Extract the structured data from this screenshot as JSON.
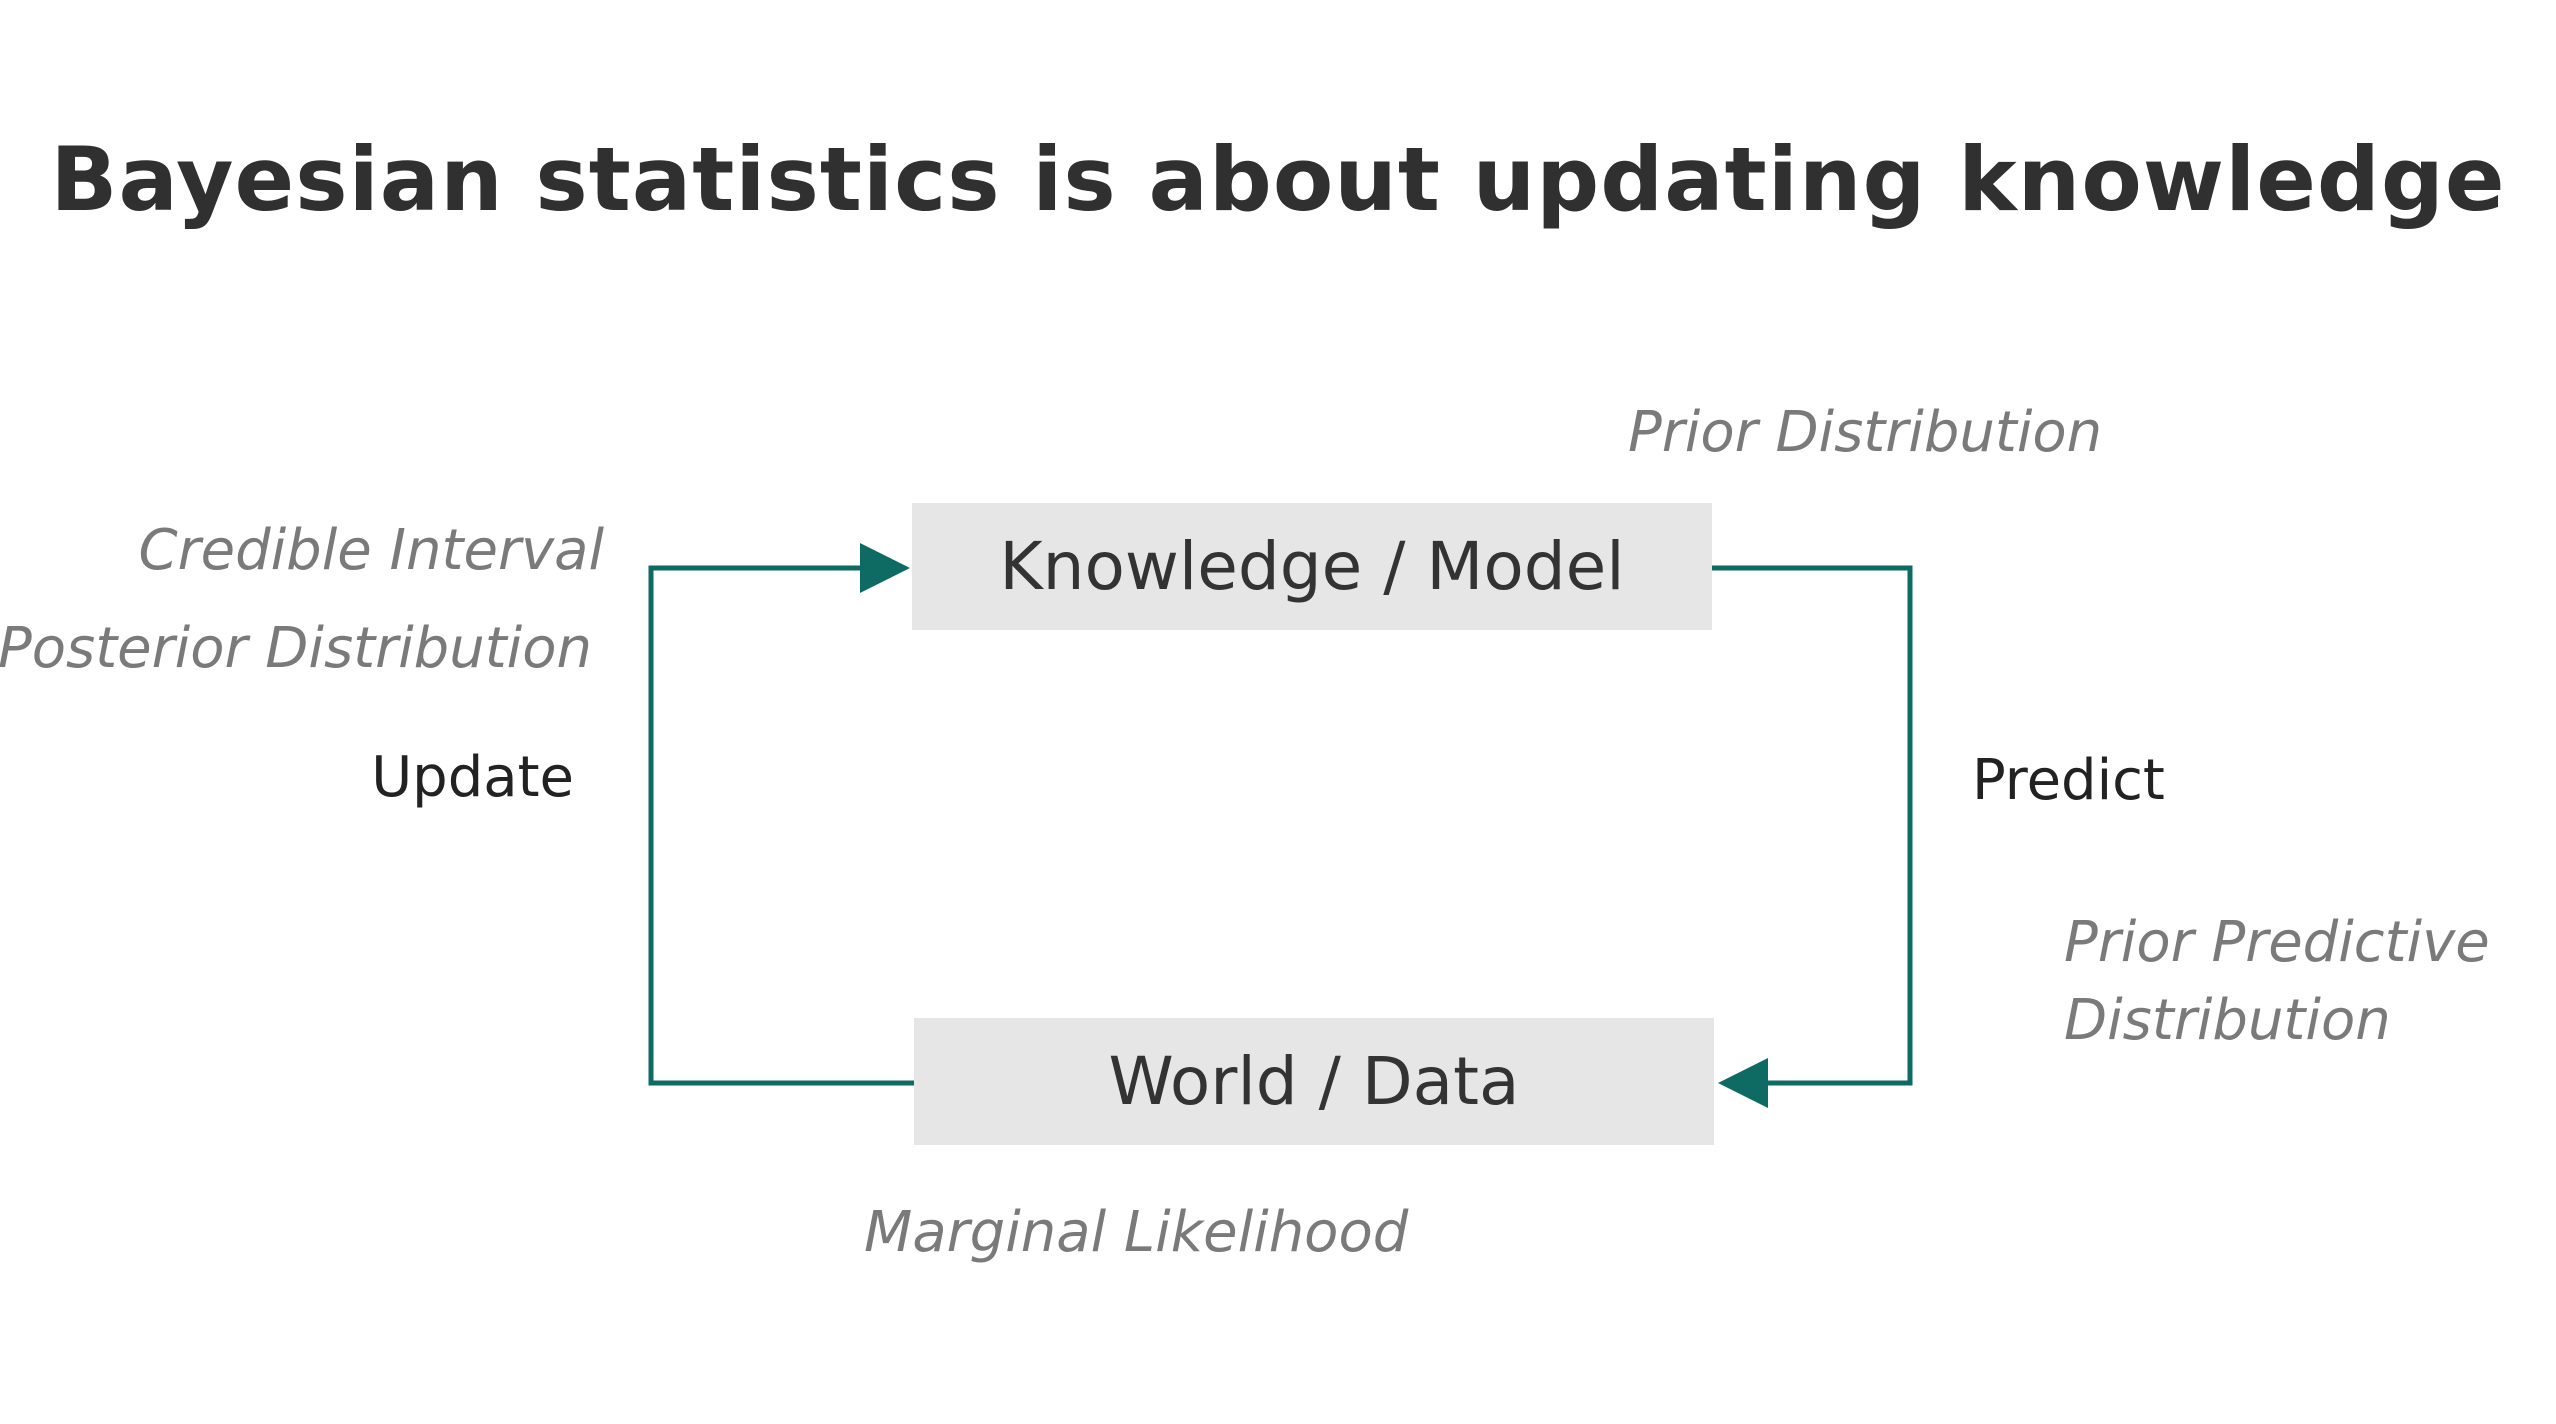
{
  "title": "Bayesian statistics is about updating knowledge",
  "nodes": {
    "knowledge": "Knowledge / Model",
    "world": "World / Data"
  },
  "labels": {
    "prior_distribution": "Prior Distribution",
    "credible_interval": "Credible Interval",
    "posterior_distribution": "Posterior Distribution",
    "update": "Update",
    "predict": "Predict",
    "prior_predictive_line1": "Prior Predictive",
    "prior_predictive_line2": "Distribution",
    "marginal_likelihood": "Marginal Likelihood"
  },
  "colors": {
    "arrow": "#0e6b63",
    "box_fill": "#e6e6e6",
    "italic_text": "#7a7a7a"
  }
}
